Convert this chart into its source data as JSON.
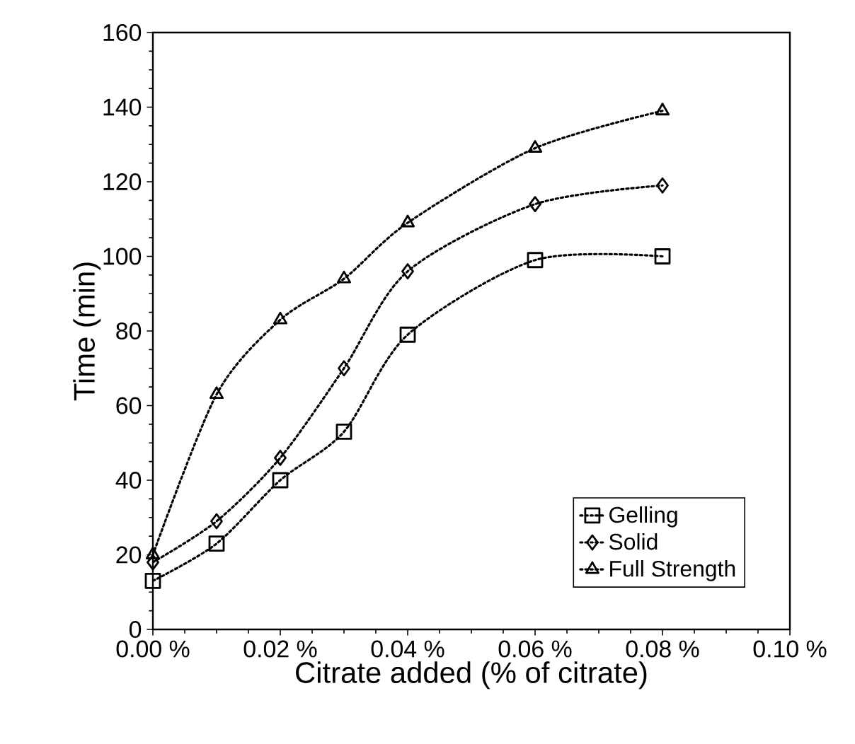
{
  "chart_data": {
    "type": "line",
    "xlabel": "Citrate added (% of citrate)",
    "ylabel": "Time (min)",
    "x": [
      0.0,
      0.01,
      0.02,
      0.03,
      0.04,
      0.06,
      0.08
    ],
    "series": [
      {
        "name": "Gelling",
        "color": "#000000",
        "marker": "square",
        "values": [
          13,
          23,
          40,
          53,
          79,
          99,
          100
        ]
      },
      {
        "name": "Solid",
        "color": "#000000",
        "marker": "diamond",
        "values": [
          18,
          29,
          46,
          70,
          96,
          114,
          119
        ]
      },
      {
        "name": "Full Strength",
        "color": "#000000",
        "marker": "triangle",
        "values": [
          20,
          63,
          83,
          94,
          109,
          129,
          139
        ]
      }
    ],
    "line_style": "dotted",
    "legend": "bottom right",
    "grid": false,
    "xlim": [
      0,
      0.1
    ],
    "ylim": [
      0,
      160
    ],
    "xticks": [
      {
        "value": 0,
        "label": "0.00 %"
      },
      {
        "value": 0.02,
        "label": "0.02 %"
      },
      {
        "value": 0.04,
        "label": "0.04 %"
      },
      {
        "value": 0.06,
        "label": "0.06 %"
      },
      {
        "value": 0.08,
        "label": "0.08 %"
      },
      {
        "value": 0.1,
        "label": "0.10 %"
      }
    ],
    "yticks": [
      0,
      20,
      40,
      60,
      80,
      100,
      120,
      140,
      160
    ]
  }
}
